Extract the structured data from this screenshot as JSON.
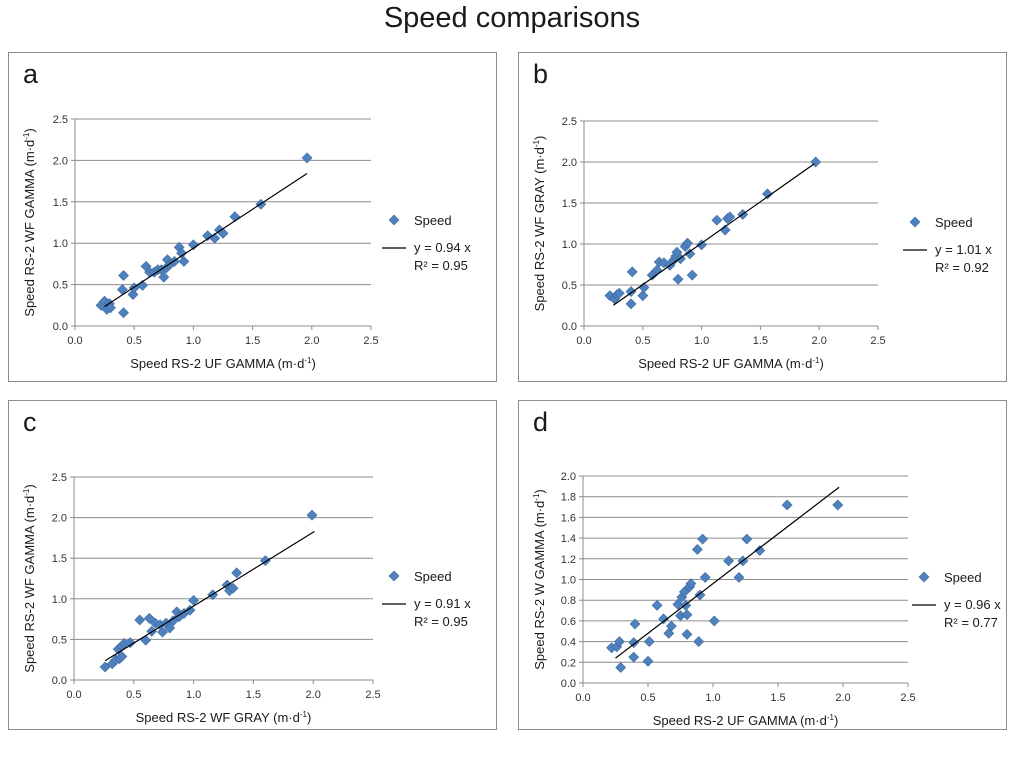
{
  "title": "Speed comparisons",
  "colors": {
    "marker": "#4f81bd",
    "marker_edge": "#3c6aa3",
    "grid": "#8c8c8c",
    "axis": "#8c8c8c",
    "trendline": "#000000",
    "frame": "#8c8c8c"
  },
  "chart_data": [
    {
      "panel": "a",
      "type": "scatter",
      "xlabel": "Speed RS-2 UF GAMMA (m·d",
      "ylabel": "Speed RS-2 WF GAMMA (m·d",
      "unit_exp": "-1",
      "unit_close": ")",
      "xlim": [
        0,
        2.5
      ],
      "ylim": [
        0,
        2.5
      ],
      "xticks": [
        "0.0",
        "0.5",
        "1.0",
        "1.5",
        "2.0",
        "2.5"
      ],
      "yticks": [
        "0.0",
        "0.5",
        "1.0",
        "1.5",
        "2.0",
        "2.5"
      ],
      "legend": {
        "series": "Speed",
        "equation": "y = 0.94 x",
        "r2": "R² = 0.95"
      },
      "trend": {
        "slope": 0.94,
        "x0": 0.25,
        "x1": 1.96
      },
      "points": [
        [
          0.22,
          0.25
        ],
        [
          0.25,
          0.3
        ],
        [
          0.27,
          0.2
        ],
        [
          0.29,
          0.27
        ],
        [
          0.3,
          0.22
        ],
        [
          0.4,
          0.44
        ],
        [
          0.41,
          0.61
        ],
        [
          0.41,
          0.16
        ],
        [
          0.49,
          0.38
        ],
        [
          0.5,
          0.46
        ],
        [
          0.57,
          0.49
        ],
        [
          0.6,
          0.72
        ],
        [
          0.63,
          0.65
        ],
        [
          0.67,
          0.65
        ],
        [
          0.7,
          0.68
        ],
        [
          0.73,
          0.68
        ],
        [
          0.75,
          0.59
        ],
        [
          0.77,
          0.7
        ],
        [
          0.78,
          0.8
        ],
        [
          0.8,
          0.74
        ],
        [
          0.84,
          0.78
        ],
        [
          0.88,
          0.95
        ],
        [
          0.9,
          0.88
        ],
        [
          0.92,
          0.78
        ],
        [
          1.0,
          0.98
        ],
        [
          1.12,
          1.09
        ],
        [
          1.18,
          1.06
        ],
        [
          1.22,
          1.16
        ],
        [
          1.25,
          1.12
        ],
        [
          1.35,
          1.32
        ],
        [
          1.57,
          1.47
        ],
        [
          1.96,
          2.03
        ]
      ]
    },
    {
      "panel": "b",
      "type": "scatter",
      "xlabel": "Speed RS-2 UF GAMMA (m·d",
      "ylabel": "Speed RS-2 WF GRAY (m·d",
      "unit_exp": "-1",
      "unit_close": ")",
      "xlim": [
        0,
        2.5
      ],
      "ylim": [
        0,
        2.5
      ],
      "xticks": [
        "0.0",
        "0.5",
        "1.0",
        "1.5",
        "2.0",
        "2.5"
      ],
      "yticks": [
        "0.0",
        "0.5",
        "1.0",
        "1.5",
        "2.0",
        "2.5"
      ],
      "legend": {
        "series": "Speed",
        "equation": "y = 1.01 x",
        "r2": "R² = 0.92"
      },
      "trend": {
        "slope": 1.01,
        "x0": 0.25,
        "x1": 1.96
      },
      "points": [
        [
          0.22,
          0.37
        ],
        [
          0.26,
          0.33
        ],
        [
          0.28,
          0.38
        ],
        [
          0.3,
          0.4
        ],
        [
          0.4,
          0.42
        ],
        [
          0.41,
          0.66
        ],
        [
          0.4,
          0.27
        ],
        [
          0.5,
          0.37
        ],
        [
          0.51,
          0.47
        ],
        [
          0.58,
          0.62
        ],
        [
          0.62,
          0.68
        ],
        [
          0.64,
          0.78
        ],
        [
          0.68,
          0.77
        ],
        [
          0.73,
          0.74
        ],
        [
          0.76,
          0.8
        ],
        [
          0.78,
          0.85
        ],
        [
          0.79,
          0.9
        ],
        [
          0.8,
          0.57
        ],
        [
          0.82,
          0.82
        ],
        [
          0.86,
          0.97
        ],
        [
          0.88,
          1.01
        ],
        [
          0.9,
          0.88
        ],
        [
          0.92,
          0.62
        ],
        [
          1.0,
          0.99
        ],
        [
          1.13,
          1.29
        ],
        [
          1.2,
          1.17
        ],
        [
          1.22,
          1.31
        ],
        [
          1.24,
          1.33
        ],
        [
          1.35,
          1.36
        ],
        [
          1.56,
          1.61
        ],
        [
          1.97,
          2.0
        ]
      ]
    },
    {
      "panel": "c",
      "type": "scatter",
      "xlabel": "Speed RS-2 WF GRAY (m·d",
      "ylabel": "Speed RS-2 WF GAMMA (m·d",
      "unit_exp": "-1",
      "unit_close": ")",
      "xlim": [
        0,
        2.5
      ],
      "ylim": [
        0,
        2.5
      ],
      "xticks": [
        "0.0",
        "0.5",
        "1.0",
        "1.5",
        "2.0",
        "2.5"
      ],
      "yticks": [
        "0.0",
        "0.5",
        "1.0",
        "1.5",
        "2.0",
        "2.5"
      ],
      "legend": {
        "series": "Speed",
        "equation": "y = 0.91 x",
        "r2": "R² = 0.95"
      },
      "trend": {
        "slope": 0.91,
        "x0": 0.26,
        "x1": 2.01
      },
      "points": [
        [
          0.26,
          0.16
        ],
        [
          0.32,
          0.2
        ],
        [
          0.35,
          0.25
        ],
        [
          0.37,
          0.38
        ],
        [
          0.38,
          0.26
        ],
        [
          0.4,
          0.29
        ],
        [
          0.4,
          0.42
        ],
        [
          0.42,
          0.45
        ],
        [
          0.47,
          0.46
        ],
        [
          0.55,
          0.74
        ],
        [
          0.6,
          0.49
        ],
        [
          0.63,
          0.76
        ],
        [
          0.65,
          0.6
        ],
        [
          0.68,
          0.7
        ],
        [
          0.72,
          0.68
        ],
        [
          0.74,
          0.59
        ],
        [
          0.77,
          0.7
        ],
        [
          0.8,
          0.64
        ],
        [
          0.83,
          0.73
        ],
        [
          0.86,
          0.84
        ],
        [
          0.88,
          0.78
        ],
        [
          0.92,
          0.82
        ],
        [
          0.97,
          0.86
        ],
        [
          1.0,
          0.98
        ],
        [
          1.16,
          1.05
        ],
        [
          1.28,
          1.17
        ],
        [
          1.3,
          1.1
        ],
        [
          1.33,
          1.13
        ],
        [
          1.36,
          1.32
        ],
        [
          1.6,
          1.47
        ],
        [
          1.99,
          2.03
        ]
      ]
    },
    {
      "panel": "d",
      "type": "scatter",
      "xlabel": "Speed RS-2 UF GAMMA (m·d",
      "ylabel": "Speed RS-2 W GAMMA (m·d",
      "unit_exp": "-1",
      "unit_close": ")",
      "xlim": [
        0,
        2.5
      ],
      "ylim": [
        0,
        2.0
      ],
      "xticks": [
        "0.0",
        "0.5",
        "1.0",
        "1.5",
        "2.0",
        "2.5"
      ],
      "yticks": [
        "0.0",
        "0.2",
        "0.4",
        "0.6",
        "0.8",
        "1.0",
        "1.2",
        "1.4",
        "1.6",
        "1.8",
        "2.0"
      ],
      "legend": {
        "series": "Speed",
        "equation": "y = 0.96 x",
        "r2": "R² = 0.77"
      },
      "trend": {
        "slope": 0.96,
        "x0": 0.25,
        "x1": 1.97
      },
      "points": [
        [
          0.22,
          0.34
        ],
        [
          0.26,
          0.35
        ],
        [
          0.28,
          0.4
        ],
        [
          0.29,
          0.15
        ],
        [
          0.39,
          0.25
        ],
        [
          0.39,
          0.39
        ],
        [
          0.4,
          0.57
        ],
        [
          0.5,
          0.21
        ],
        [
          0.51,
          0.4
        ],
        [
          0.57,
          0.75
        ],
        [
          0.62,
          0.62
        ],
        [
          0.66,
          0.48
        ],
        [
          0.68,
          0.55
        ],
        [
          0.73,
          0.76
        ],
        [
          0.75,
          0.65
        ],
        [
          0.76,
          0.83
        ],
        [
          0.78,
          0.88
        ],
        [
          0.79,
          0.75
        ],
        [
          0.8,
          0.66
        ],
        [
          0.8,
          0.47
        ],
        [
          0.82,
          0.93
        ],
        [
          0.83,
          0.96
        ],
        [
          0.88,
          1.29
        ],
        [
          0.89,
          0.4
        ],
        [
          0.9,
          0.85
        ],
        [
          0.92,
          1.39
        ],
        [
          0.94,
          1.02
        ],
        [
          1.01,
          0.6
        ],
        [
          1.12,
          1.18
        ],
        [
          1.2,
          1.02
        ],
        [
          1.23,
          1.18
        ],
        [
          1.26,
          1.39
        ],
        [
          1.36,
          1.28
        ],
        [
          1.57,
          1.72
        ],
        [
          1.96,
          1.72
        ]
      ]
    }
  ]
}
